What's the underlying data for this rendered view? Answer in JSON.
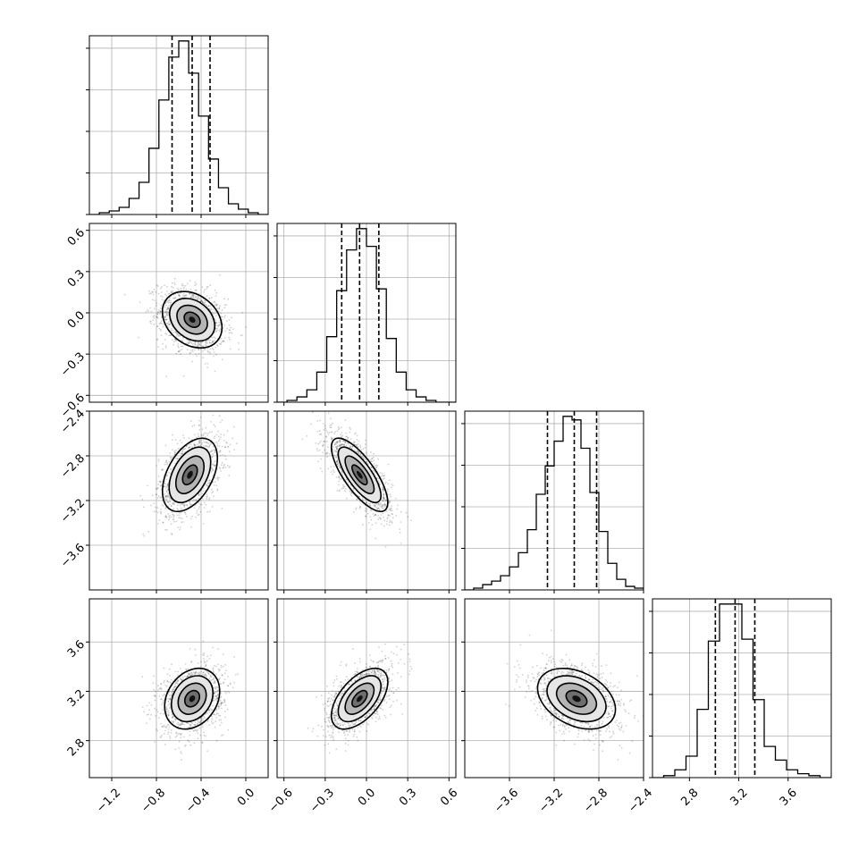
{
  "chart_data": {
    "type": "corner",
    "parameters": 4,
    "histogram_style": "step",
    "grid": true,
    "quantiles": [
      0.16,
      0.5,
      0.84
    ],
    "params": [
      {
        "range": [
          -1.4,
          0.2
        ],
        "ticks": [
          -1.2,
          -0.8,
          -0.4,
          0.0
        ],
        "tick_labels": [
          "−1.2",
          "−0.8",
          "−0.4",
          "0.0"
        ],
        "quantile_values": [
          -0.66,
          -0.48,
          -0.32
        ]
      },
      {
        "range": [
          -0.65,
          0.65
        ],
        "ticks": [
          -0.6,
          -0.3,
          0.0,
          0.3,
          0.6
        ],
        "tick_labels": [
          "−0.6",
          "−0.3",
          "0.0",
          "0.3",
          "0.6"
        ],
        "quantile_values": [
          -0.18,
          -0.05,
          0.09
        ]
      },
      {
        "range": [
          -4.0,
          -2.4
        ],
        "ticks": [
          -3.6,
          -3.2,
          -2.8,
          -2.4
        ],
        "tick_labels": [
          "−3.6",
          "−3.2",
          "−2.8",
          "−2.4"
        ],
        "quantile_values": [
          -3.26,
          -3.02,
          -2.82
        ]
      },
      {
        "range": [
          2.5,
          3.95
        ],
        "ticks": [
          2.8,
          3.2,
          3.6
        ],
        "tick_labels": [
          "2.8",
          "3.2",
          "3.6"
        ],
        "quantile_values": [
          3.01,
          3.17,
          3.33
        ]
      }
    ],
    "histograms": [
      [
        0,
        1,
        2,
        4,
        9,
        18,
        37,
        64,
        88,
        97,
        79,
        55,
        31,
        15,
        6,
        3,
        1,
        0
      ],
      [
        0,
        1,
        3,
        7,
        17,
        37,
        63,
        86,
        98,
        88,
        64,
        36,
        17,
        7,
        3,
        1,
        0,
        0
      ],
      [
        0,
        1,
        3,
        5,
        8,
        13,
        21,
        34,
        54,
        70,
        84,
        98,
        96,
        80,
        55,
        33,
        15,
        6,
        2,
        1
      ],
      [
        0,
        1,
        4,
        11,
        35,
        70,
        89,
        89,
        71,
        40,
        16,
        9,
        4,
        2,
        1,
        0
      ]
    ],
    "correlations": [
      {
        "i": 1,
        "j": 0,
        "center": [
          -0.48,
          -0.05
        ],
        "sigma": [
          0.13,
          0.1
        ],
        "rho": -0.28
      },
      {
        "i": 2,
        "j": 0,
        "center": [
          -0.5,
          -2.97
        ],
        "sigma": [
          0.12,
          0.16
        ],
        "rho": 0.45
      },
      {
        "i": 2,
        "j": 1,
        "center": [
          -0.05,
          -2.97
        ],
        "sigma": [
          0.1,
          0.16
        ],
        "rho": -0.75
      },
      {
        "i": 3,
        "j": 0,
        "center": [
          -0.48,
          3.14
        ],
        "sigma": [
          0.12,
          0.12
        ],
        "rho": 0.25
      },
      {
        "i": 3,
        "j": 1,
        "center": [
          -0.05,
          3.14
        ],
        "sigma": [
          0.1,
          0.12
        ],
        "rho": 0.55
      },
      {
        "i": 3,
        "j": 2,
        "center": [
          -3.0,
          3.14
        ],
        "sigma": [
          0.17,
          0.12
        ],
        "rho": -0.35
      }
    ]
  }
}
